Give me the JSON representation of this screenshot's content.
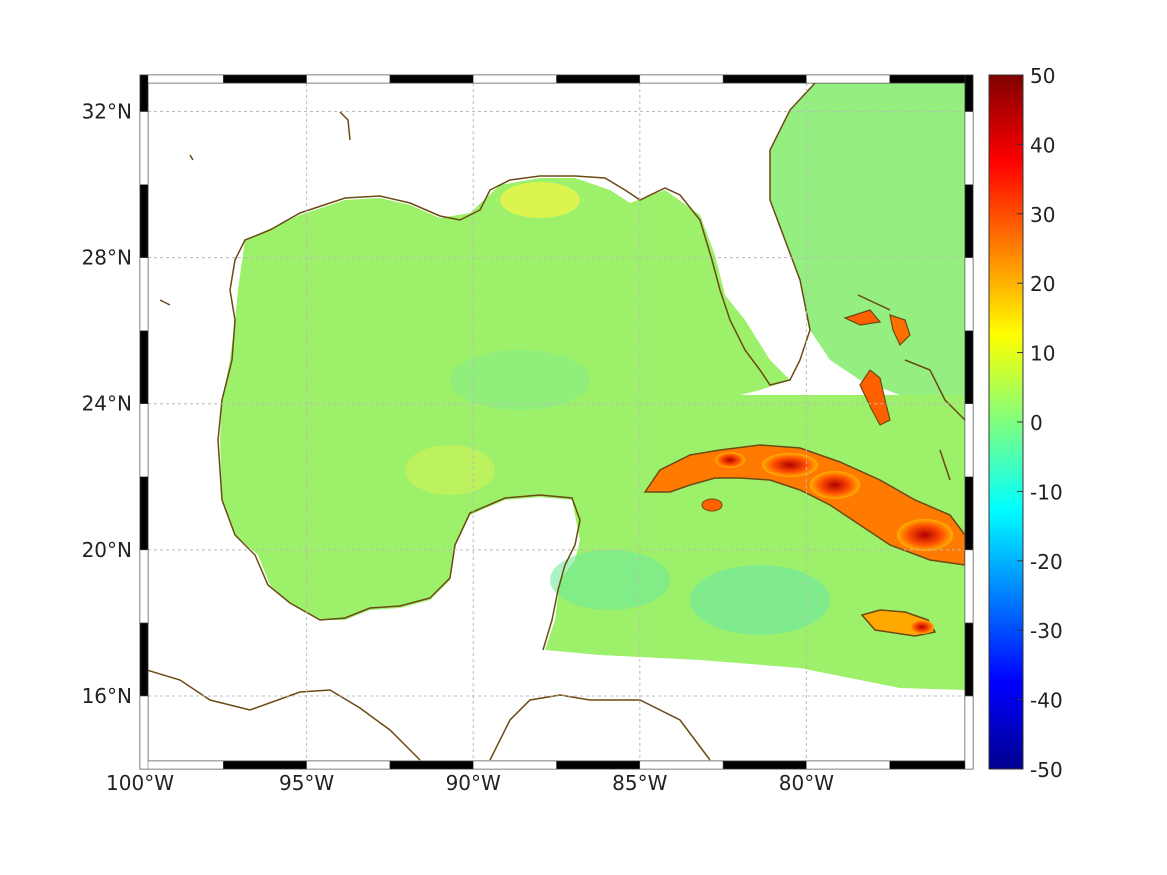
{
  "map": {
    "lon_range": [
      -100,
      -75
    ],
    "lat_range": [
      14,
      33
    ],
    "lon_ticks": [
      {
        "value": -100,
        "label": "100°W"
      },
      {
        "value": -95,
        "label": "95°W"
      },
      {
        "value": -90,
        "label": "90°W"
      },
      {
        "value": -85,
        "label": "85°W"
      },
      {
        "value": -80,
        "label": "80°W"
      }
    ],
    "lat_ticks": [
      {
        "value": 16,
        "label": "16°N"
      },
      {
        "value": 20,
        "label": "20°N"
      },
      {
        "value": 24,
        "label": "24°N"
      },
      {
        "value": 28,
        "label": "28°N"
      },
      {
        "value": 32,
        "label": "32°N"
      }
    ],
    "grid": true,
    "coastline_color": "#6b4a14",
    "land_color": "#ffffff",
    "ocean_color": "#8fef6a"
  },
  "colorbar": {
    "range": [
      -50,
      50
    ],
    "colormap": "jet",
    "position": "right",
    "ticks": [
      {
        "value": 50,
        "label": "50"
      },
      {
        "value": 40,
        "label": "40"
      },
      {
        "value": 30,
        "label": "30"
      },
      {
        "value": 20,
        "label": "20"
      },
      {
        "value": 10,
        "label": "10"
      },
      {
        "value": 0,
        "label": "0"
      },
      {
        "value": -10,
        "label": "-10"
      },
      {
        "value": -20,
        "label": "-20"
      },
      {
        "value": -30,
        "label": "-30"
      },
      {
        "value": -40,
        "label": "-40"
      },
      {
        "value": -50,
        "label": "-50"
      }
    ]
  }
}
